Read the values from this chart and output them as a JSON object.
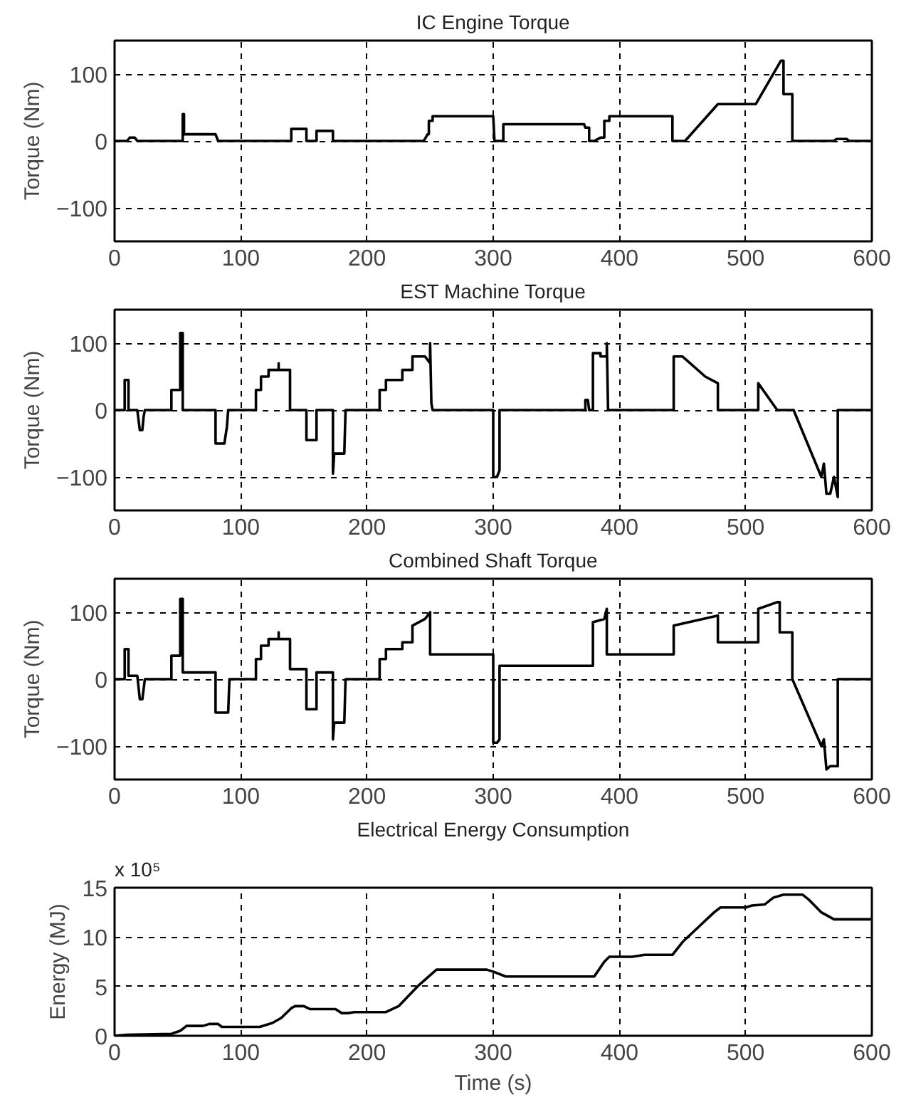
{
  "chart_data": [
    {
      "type": "line",
      "title": "IC Engine Torque",
      "ylabel": "Torque (Nm)",
      "color": "#000000",
      "grid": true,
      "xlim": [
        0,
        600
      ],
      "ylim": [
        -150,
        150
      ],
      "xticks": [
        0,
        100,
        200,
        300,
        400,
        500,
        600
      ],
      "yticks": [
        -100,
        0,
        100
      ],
      "x": [
        0,
        10,
        12,
        16,
        18,
        54,
        54,
        55,
        55,
        80,
        82,
        140,
        140,
        152,
        152,
        160,
        160,
        173,
        173,
        245,
        248,
        249,
        249,
        252,
        252,
        300,
        301,
        308,
        308,
        372,
        373,
        376,
        376,
        380,
        385,
        388,
        388,
        392,
        392,
        442,
        442,
        452,
        478,
        508,
        528,
        530,
        530,
        537,
        537,
        570,
        572,
        580,
        582,
        600
      ],
      "values": [
        0,
        0,
        5,
        5,
        0,
        0,
        40,
        40,
        10,
        10,
        0,
        0,
        18,
        18,
        0,
        0,
        15,
        15,
        0,
        0,
        10,
        10,
        30,
        30,
        37,
        37,
        0,
        0,
        25,
        25,
        20,
        20,
        0,
        0,
        5,
        5,
        30,
        30,
        37,
        37,
        0,
        0,
        55,
        55,
        120,
        120,
        70,
        70,
        0,
        0,
        3,
        3,
        0,
        0
      ]
    },
    {
      "type": "line",
      "title": "EST Machine Torque",
      "ylabel": "Torque (Nm)",
      "color": "#000000",
      "grid": true,
      "xlim": [
        0,
        600
      ],
      "ylim": [
        -150,
        150
      ],
      "xticks": [
        0,
        100,
        200,
        300,
        400,
        500,
        600
      ],
      "yticks": [
        -100,
        0,
        100
      ],
      "x": [
        0,
        8,
        8,
        11,
        11,
        18,
        20,
        22,
        23,
        24,
        45,
        45,
        52,
        52,
        54,
        54,
        80,
        80,
        87,
        89,
        90,
        112,
        112,
        116,
        116,
        122,
        122,
        130,
        130,
        130,
        139,
        139,
        152,
        152,
        160,
        160,
        173,
        173,
        174,
        182,
        183,
        210,
        210,
        215,
        215,
        228,
        228,
        236,
        236,
        246,
        250,
        250,
        251,
        252,
        300,
        300,
        303,
        305,
        305,
        373,
        373,
        375,
        376,
        379,
        379,
        385,
        385,
        390,
        390,
        391,
        443,
        443,
        450,
        468,
        478,
        478,
        510,
        510,
        525,
        538,
        560,
        562,
        564,
        567,
        570,
        573,
        573,
        600
      ],
      "values": [
        0,
        0,
        45,
        45,
        0,
        0,
        -30,
        -30,
        -10,
        0,
        0,
        30,
        30,
        115,
        115,
        0,
        0,
        -50,
        -50,
        -25,
        0,
        0,
        30,
        30,
        50,
        50,
        60,
        60,
        70,
        60,
        60,
        0,
        0,
        -45,
        -45,
        0,
        0,
        -95,
        -65,
        -65,
        0,
        0,
        30,
        30,
        45,
        45,
        60,
        60,
        80,
        80,
        70,
        100,
        10,
        0,
        0,
        -100,
        -100,
        -90,
        0,
        0,
        15,
        15,
        0,
        0,
        85,
        85,
        80,
        80,
        100,
        0,
        0,
        80,
        80,
        50,
        40,
        0,
        0,
        40,
        0,
        0,
        -100,
        -80,
        -125,
        -125,
        -100,
        -130,
        0,
        0
      ]
    },
    {
      "type": "line",
      "title": "Combined Shaft Torque",
      "ylabel": "Torque (Nm)",
      "color": "#000000",
      "grid": true,
      "xlim": [
        0,
        600
      ],
      "ylim": [
        -150,
        150
      ],
      "xticks": [
        0,
        100,
        200,
        300,
        400,
        500,
        600
      ],
      "yticks": [
        -100,
        0,
        100
      ],
      "x": [
        0,
        8,
        8,
        11,
        11,
        18,
        20,
        22,
        24,
        45,
        45,
        52,
        52,
        54,
        54,
        80,
        80,
        90,
        91,
        112,
        112,
        116,
        116,
        122,
        122,
        130,
        130,
        130,
        139,
        139,
        152,
        152,
        160,
        160,
        173,
        173,
        174,
        182,
        183,
        210,
        210,
        215,
        215,
        228,
        228,
        236,
        236,
        246,
        250,
        250,
        300,
        300,
        303,
        305,
        305,
        379,
        379,
        388,
        390,
        390,
        443,
        443,
        478,
        478,
        510,
        510,
        525,
        527,
        527,
        537,
        537,
        560,
        562,
        564,
        567,
        573,
        573,
        600
      ],
      "values": [
        0,
        0,
        45,
        45,
        5,
        5,
        -30,
        -30,
        0,
        0,
        35,
        35,
        120,
        120,
        10,
        10,
        -50,
        -50,
        0,
        0,
        30,
        30,
        50,
        50,
        60,
        60,
        70,
        60,
        60,
        15,
        15,
        -45,
        -45,
        10,
        10,
        -90,
        -65,
        -65,
        0,
        0,
        30,
        30,
        45,
        45,
        55,
        55,
        80,
        90,
        100,
        37,
        37,
        -95,
        -95,
        -90,
        20,
        20,
        85,
        90,
        105,
        37,
        37,
        80,
        95,
        55,
        55,
        105,
        115,
        115,
        70,
        70,
        0,
        -100,
        -90,
        -135,
        -130,
        -130,
        0,
        0
      ]
    },
    {
      "type": "line",
      "title": "Electrical Energy Consumption",
      "xlabel": "Time (s)",
      "ylabel": "Energy (MJ)",
      "annotations": [
        "x 10⁵"
      ],
      "color": "#000000",
      "grid": true,
      "xlim": [
        0,
        600
      ],
      "ylim": [
        0,
        15
      ],
      "xticks": [
        0,
        100,
        200,
        300,
        400,
        500,
        600
      ],
      "yticks": [
        0,
        5,
        10,
        15
      ],
      "x": [
        0,
        10,
        45,
        52,
        57,
        70,
        75,
        82,
        85,
        115,
        125,
        132,
        140,
        143,
        150,
        155,
        175,
        180,
        185,
        190,
        215,
        225,
        240,
        255,
        295,
        300,
        310,
        380,
        388,
        392,
        410,
        420,
        442,
        450,
        465,
        475,
        480,
        500,
        505,
        515,
        522,
        530,
        545,
        550,
        560,
        570,
        600
      ],
      "values": [
        0,
        0.1,
        0.2,
        0.5,
        1.0,
        1.0,
        1.2,
        1.2,
        0.9,
        0.9,
        1.3,
        1.8,
        2.8,
        3.0,
        3.0,
        2.7,
        2.7,
        2.3,
        2.3,
        2.4,
        2.4,
        3.0,
        5.0,
        6.7,
        6.7,
        6.5,
        6.0,
        6.0,
        7.5,
        8.0,
        8.0,
        8.2,
        8.2,
        9.5,
        11.3,
        12.5,
        13.0,
        13.0,
        13.2,
        13.3,
        14.0,
        14.3,
        14.3,
        13.8,
        12.5,
        11.8,
        11.8
      ]
    }
  ]
}
